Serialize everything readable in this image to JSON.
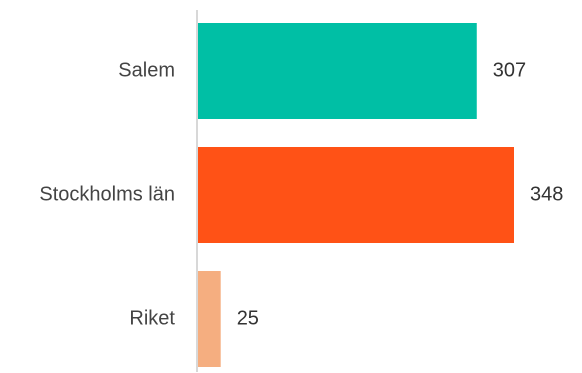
{
  "chart_data": {
    "type": "bar",
    "orientation": "horizontal",
    "categories": [
      "Salem",
      "Stockholms län",
      "Riket"
    ],
    "values": [
      307,
      348,
      25
    ],
    "colors": [
      "#00bfa5",
      "#ff5216",
      "#f5ae80"
    ],
    "axis_color": "#cccccc",
    "data_labels": true,
    "title": "",
    "xlabel": "",
    "ylabel": ""
  }
}
